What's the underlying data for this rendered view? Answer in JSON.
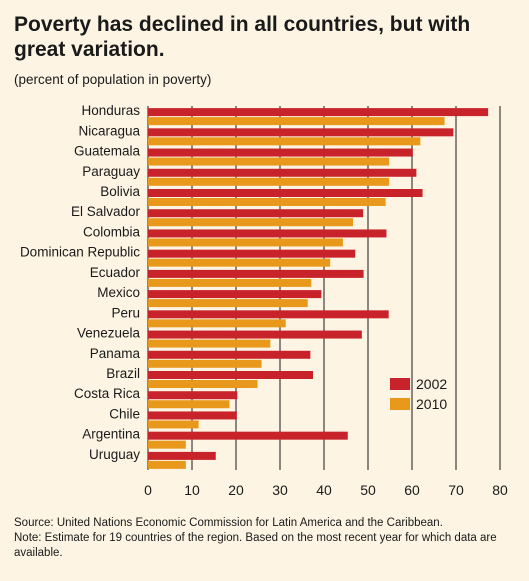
{
  "header": {
    "title": "Poverty has declined in all countries, but with great variation.",
    "subtitle": "(percent of population in poverty)"
  },
  "footer": {
    "source": "Source: United Nations Economic Commission for Latin America and the Caribbean.",
    "note": "Note: Estimate for 19 countries of the region. Based on the most recent year for which data are available."
  },
  "colors": {
    "series_2002": "#c8232a",
    "series_2010": "#e8991c",
    "background": "#fdf4e3"
  },
  "chart_data": {
    "type": "bar",
    "orientation": "horizontal",
    "title": "Poverty has declined in all countries, but with great variation.",
    "subtitle": "(percent of population in poverty)",
    "categories": [
      "Honduras",
      "Nicaragua",
      "Guatemala",
      "Paraguay",
      "Bolivia",
      "El Salvador",
      "Colombia",
      "Dominican Republic",
      "Ecuador",
      "Mexico",
      "Peru",
      "Venezuela",
      "Panama",
      "Brazil",
      "Costa Rica",
      "Chile",
      "Argentina",
      "Uruguay"
    ],
    "series": [
      {
        "name": "2002",
        "values": [
          77.3,
          69.4,
          60.2,
          61.0,
          62.4,
          48.9,
          54.2,
          47.1,
          49.0,
          39.4,
          54.7,
          48.6,
          36.9,
          37.5,
          20.3,
          20.2,
          45.4,
          15.4
        ]
      },
      {
        "name": "2010",
        "values": [
          67.4,
          61.9,
          54.8,
          54.8,
          54.0,
          46.6,
          44.3,
          41.4,
          37.1,
          36.3,
          31.3,
          27.8,
          25.8,
          24.9,
          18.5,
          11.5,
          8.6,
          8.6
        ]
      }
    ],
    "x_ticks": [
      0,
      10,
      20,
      30,
      40,
      50,
      60,
      70,
      80
    ],
    "xlim": [
      0,
      80
    ],
    "xlabel": "",
    "ylabel": "",
    "grid": "vertical",
    "legend": "lower-right"
  }
}
